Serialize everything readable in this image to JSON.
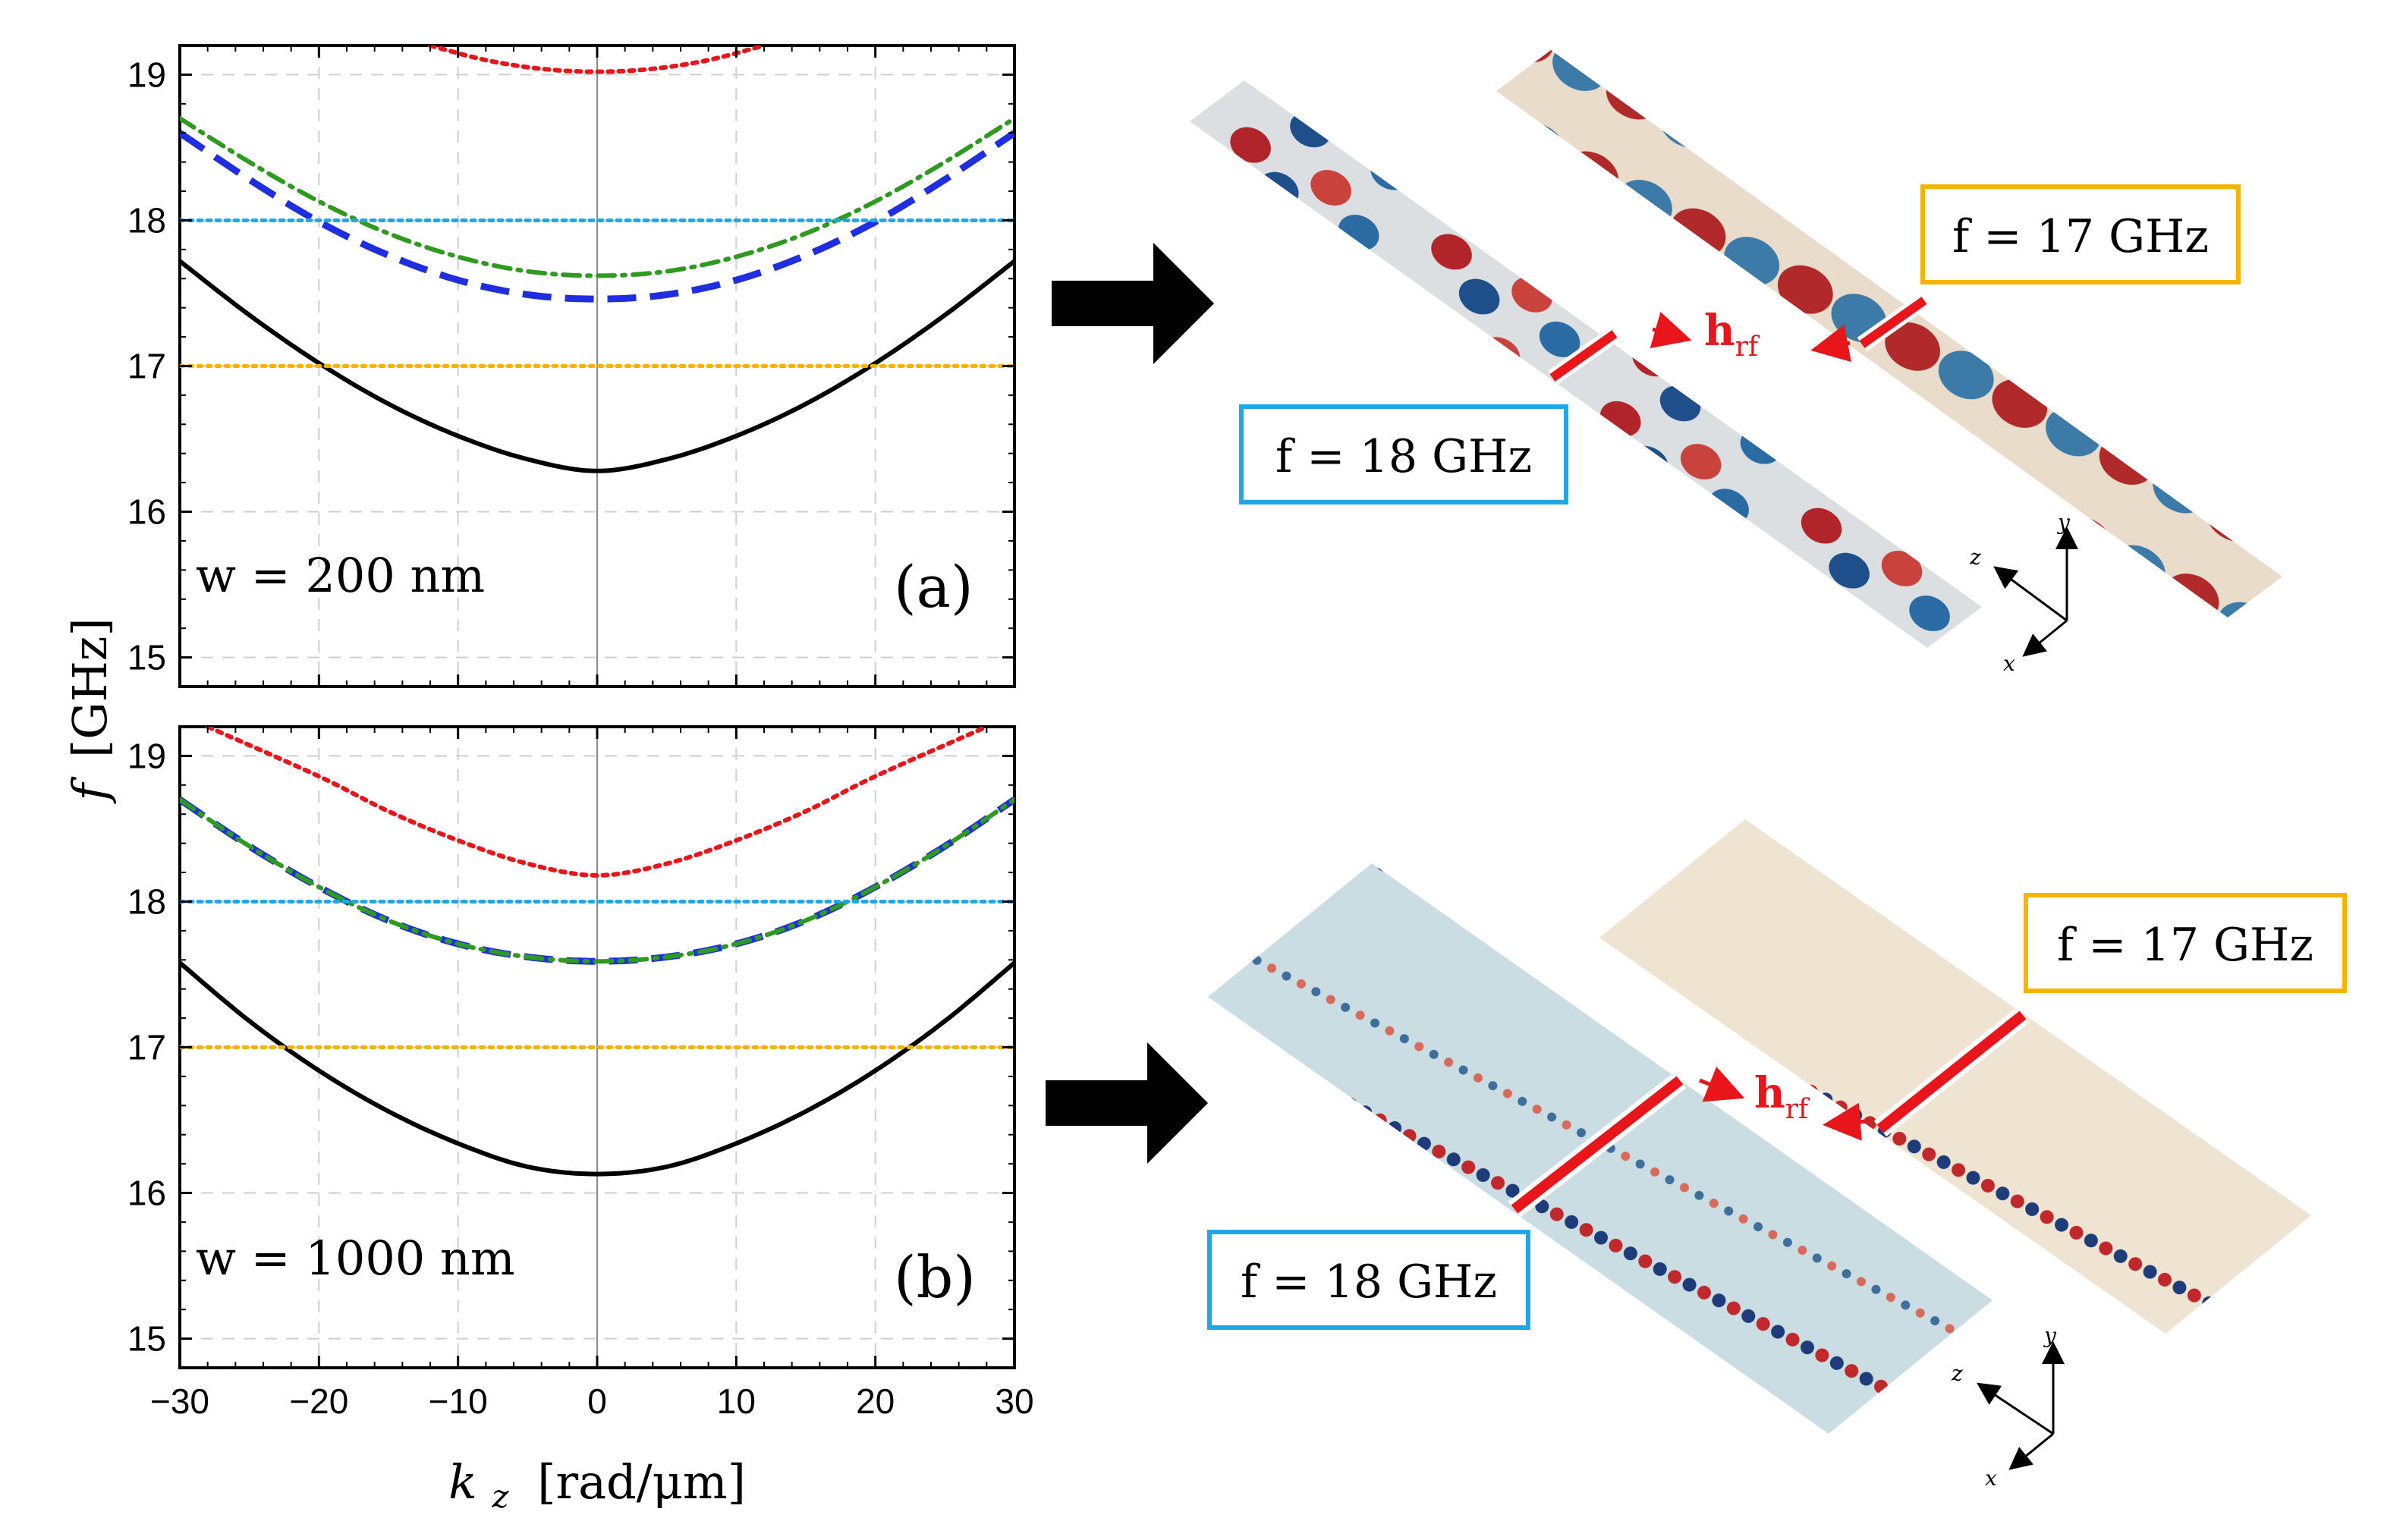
{
  "figure": {
    "y_axis_symbol": "f",
    "y_axis_unit": "[GHz]",
    "x_axis_symbol": "k",
    "x_axis_subscript": "z",
    "x_axis_unit": "[rad/μm]"
  },
  "colors": {
    "black_curve": "#000000",
    "red_curve": "#e8161b",
    "green_curve": "#2e9a1f",
    "blue_curve": "#1f2fe0",
    "cyan_line": "#22a7e6",
    "orange_line": "#f5b400",
    "red_bar": "#e8161b"
  },
  "chart_data": [
    {
      "type": "line",
      "panel": "(a)",
      "label": "w = 200 nm",
      "xlim": [
        -30,
        30
      ],
      "ylim": [
        14.8,
        19.2
      ],
      "xticks": [
        -30,
        -20,
        -10,
        0,
        10,
        20,
        30
      ],
      "yticks": [
        15,
        16,
        17,
        18,
        19
      ],
      "grid": true,
      "series": [
        {
          "name": "black solid",
          "style": "solid",
          "x": [
            -30,
            -25,
            -20,
            -15,
            -10,
            -5,
            0,
            5,
            10,
            15,
            20,
            25,
            30
          ],
          "values": [
            17.72,
            17.35,
            17.02,
            16.74,
            16.52,
            16.36,
            16.28,
            16.36,
            16.52,
            16.74,
            17.02,
            17.35,
            17.72
          ]
        },
        {
          "name": "blue dashed",
          "style": "dashed",
          "x": [
            -30,
            -25,
            -20,
            -15,
            -10,
            -5,
            0,
            5,
            10,
            15,
            20,
            25,
            30
          ],
          "values": [
            18.6,
            18.28,
            17.99,
            17.76,
            17.59,
            17.49,
            17.46,
            17.49,
            17.59,
            17.76,
            17.99,
            18.28,
            18.6
          ]
        },
        {
          "name": "green dash-dot",
          "style": "dashdot",
          "x": [
            -30,
            -25,
            -20,
            -15,
            -10,
            -5,
            0,
            5,
            10,
            15,
            20,
            25,
            30
          ],
          "values": [
            18.7,
            18.4,
            18.13,
            17.91,
            17.75,
            17.65,
            17.62,
            17.65,
            17.75,
            17.91,
            18.13,
            18.4,
            18.7
          ]
        },
        {
          "name": "red dotted",
          "style": "dotted",
          "x": [
            -12,
            -8,
            -4,
            0,
            4,
            8,
            12
          ],
          "values": [
            19.2,
            19.1,
            19.04,
            19.02,
            19.04,
            19.1,
            19.2
          ]
        },
        {
          "name": "f = 18 GHz",
          "style": "dotted-hline",
          "x": [
            -30,
            30
          ],
          "values": [
            18,
            18
          ]
        },
        {
          "name": "f = 17 GHz",
          "style": "dotted-hline",
          "x": [
            -30,
            30
          ],
          "values": [
            17,
            17
          ]
        }
      ]
    },
    {
      "type": "line",
      "panel": "(b)",
      "label": "w = 1000 nm",
      "xlim": [
        -30,
        30
      ],
      "ylim": [
        14.8,
        19.2
      ],
      "xticks": [
        -30,
        -20,
        -10,
        0,
        10,
        20,
        30
      ],
      "yticks": [
        15,
        16,
        17,
        18,
        19
      ],
      "grid": true,
      "series": [
        {
          "name": "black solid",
          "style": "solid",
          "x": [
            -30,
            -25,
            -20,
            -15,
            -10,
            -5,
            0,
            5,
            10,
            15,
            20,
            25,
            30
          ],
          "values": [
            17.58,
            17.18,
            16.84,
            16.56,
            16.34,
            16.18,
            16.13,
            16.18,
            16.34,
            16.56,
            16.84,
            17.18,
            17.58
          ]
        },
        {
          "name": "blue dashed",
          "style": "dashed",
          "x": [
            -30,
            -25,
            -20,
            -15,
            -10,
            -5,
            0,
            5,
            10,
            15,
            20,
            25,
            30
          ],
          "values": [
            18.7,
            18.38,
            18.1,
            17.87,
            17.71,
            17.62,
            17.59,
            17.62,
            17.71,
            17.87,
            18.1,
            18.38,
            18.7
          ]
        },
        {
          "name": "green dash-dot",
          "style": "dashdot",
          "x": [
            -30,
            -25,
            -20,
            -15,
            -10,
            -5,
            0,
            5,
            10,
            15,
            20,
            25,
            30
          ],
          "values": [
            18.7,
            18.38,
            18.1,
            17.87,
            17.71,
            17.62,
            17.59,
            17.62,
            17.71,
            17.87,
            18.1,
            18.38,
            18.7
          ]
        },
        {
          "name": "red dotted",
          "style": "dotted",
          "x": [
            -28,
            -20,
            -15,
            -10,
            -5,
            0,
            5,
            10,
            15,
            20,
            28
          ],
          "values": [
            19.2,
            18.86,
            18.62,
            18.42,
            18.26,
            18.18,
            18.26,
            18.42,
            18.62,
            18.86,
            19.2
          ]
        },
        {
          "name": "f = 18 GHz",
          "style": "dotted-hline",
          "x": [
            -30,
            30
          ],
          "values": [
            18,
            18
          ]
        },
        {
          "name": "f = 17 GHz",
          "style": "dotted-hline",
          "x": [
            -30,
            30
          ],
          "values": [
            17,
            17
          ]
        }
      ]
    }
  ],
  "maps": {
    "top": {
      "label_18": "f = 18 GHz",
      "label_17": "f = 17 GHz",
      "hrf_main": "h",
      "hrf_sub": "rf"
    },
    "bottom": {
      "label_18": "f = 18 GHz",
      "label_17": "f = 17 GHz",
      "hrf_main": "h",
      "hrf_sub": "rf"
    },
    "axes": {
      "x": "x",
      "y": "y",
      "z": "z"
    }
  }
}
